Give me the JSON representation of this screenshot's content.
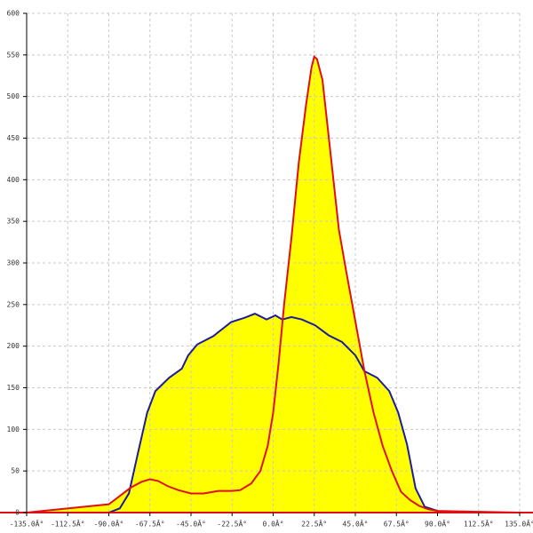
{
  "chart_data": {
    "type": "area",
    "xlim": [
      -135,
      135
    ],
    "ylim": [
      0,
      600
    ],
    "xticks": [
      {
        "value": -135,
        "label": "-135.0Â°"
      },
      {
        "value": -112.5,
        "label": "-112.5Â°"
      },
      {
        "value": -90,
        "label": "-90.0Â°"
      },
      {
        "value": -67.5,
        "label": "-67.5Â°"
      },
      {
        "value": -45,
        "label": "-45.0Â°"
      },
      {
        "value": -22.5,
        "label": "-22.5Â°"
      },
      {
        "value": 0,
        "label": "0.0Â°"
      },
      {
        "value": 22.5,
        "label": "22.5Â°"
      },
      {
        "value": 45,
        "label": "45.0Â°"
      },
      {
        "value": 67.5,
        "label": "67.5Â°"
      },
      {
        "value": 90,
        "label": "90.0Â°"
      },
      {
        "value": 112.5,
        "label": "112.5Â°"
      },
      {
        "value": 135,
        "label": "135.0Â°"
      }
    ],
    "yticks": [
      0,
      50,
      100,
      150,
      200,
      250,
      300,
      350,
      400,
      450,
      500,
      550,
      600
    ],
    "grid": true,
    "fill_color": "#ffff00",
    "series": [
      {
        "color": "#1c1c9e",
        "x": [
          -90,
          -84,
          -79,
          -74,
          -69,
          -64.5,
          -57,
          -50,
          -46.5,
          -41.6,
          -32.8,
          -23,
          -15.8,
          -10,
          -3.6,
          1.2,
          5,
          10,
          15.8,
          23,
          30.4,
          37.7,
          45,
          49.9,
          57,
          63.6,
          68.5,
          73.3,
          78,
          83,
          90
        ],
        "values": [
          0,
          5,
          23,
          72,
          120,
          146,
          162,
          173,
          189,
          202,
          212,
          229,
          234,
          239,
          232,
          237,
          232,
          235,
          232,
          225,
          213,
          205,
          189,
          170,
          162,
          146,
          120,
          82,
          29,
          7,
          2
        ]
      },
      {
        "color": "#e01010",
        "x": [
          -135,
          -90,
          -84,
          -78,
          -72,
          -67.5,
          -63,
          -58,
          -52,
          -45,
          -38,
          -30,
          -22.5,
          -18,
          -12,
          -7,
          -3,
          0,
          3,
          6,
          10,
          14,
          18,
          21,
          22.5,
          24,
          27,
          30,
          33,
          36,
          40,
          45,
          50,
          55,
          60,
          65,
          70,
          75,
          80,
          85,
          90,
          135
        ],
        "values": [
          0,
          10,
          20,
          30,
          37,
          40,
          38,
          32,
          27,
          23,
          23,
          26,
          26,
          27,
          35,
          50,
          80,
          120,
          180,
          250,
          330,
          420,
          490,
          535,
          548,
          545,
          520,
          460,
          400,
          340,
          290,
          230,
          170,
          120,
          80,
          50,
          25,
          15,
          8,
          4,
          2,
          0
        ]
      }
    ]
  }
}
